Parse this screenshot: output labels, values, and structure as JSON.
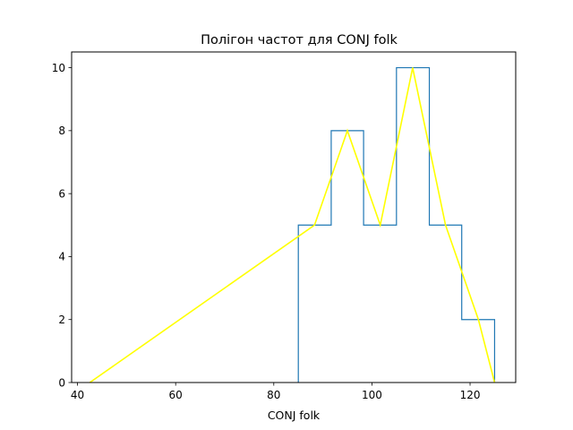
{
  "chart_data": {
    "type": "histogram",
    "title": "Полігон частот для CONJ folk",
    "xlabel": "CONJ folk",
    "ylabel": "",
    "xlim": [
      38.8,
      129.3
    ],
    "ylim": [
      0,
      10.5
    ],
    "xticks": [
      40,
      60,
      80,
      100,
      120
    ],
    "yticks": [
      0,
      2,
      4,
      6,
      8,
      10
    ],
    "grid": false,
    "histogram": {
      "color": "#1f77b4",
      "bin_edges": [
        85.0,
        91.7,
        98.3,
        105.0,
        111.7,
        118.3,
        125.0
      ],
      "counts": [
        5,
        8,
        5,
        10,
        5,
        2
      ]
    },
    "polygon": {
      "color": "#ffff00",
      "x": [
        42.5,
        88.3,
        95.0,
        101.7,
        108.3,
        115.0,
        121.7,
        125.0
      ],
      "y": [
        0,
        5,
        8,
        5,
        10,
        5,
        2,
        0
      ]
    }
  }
}
